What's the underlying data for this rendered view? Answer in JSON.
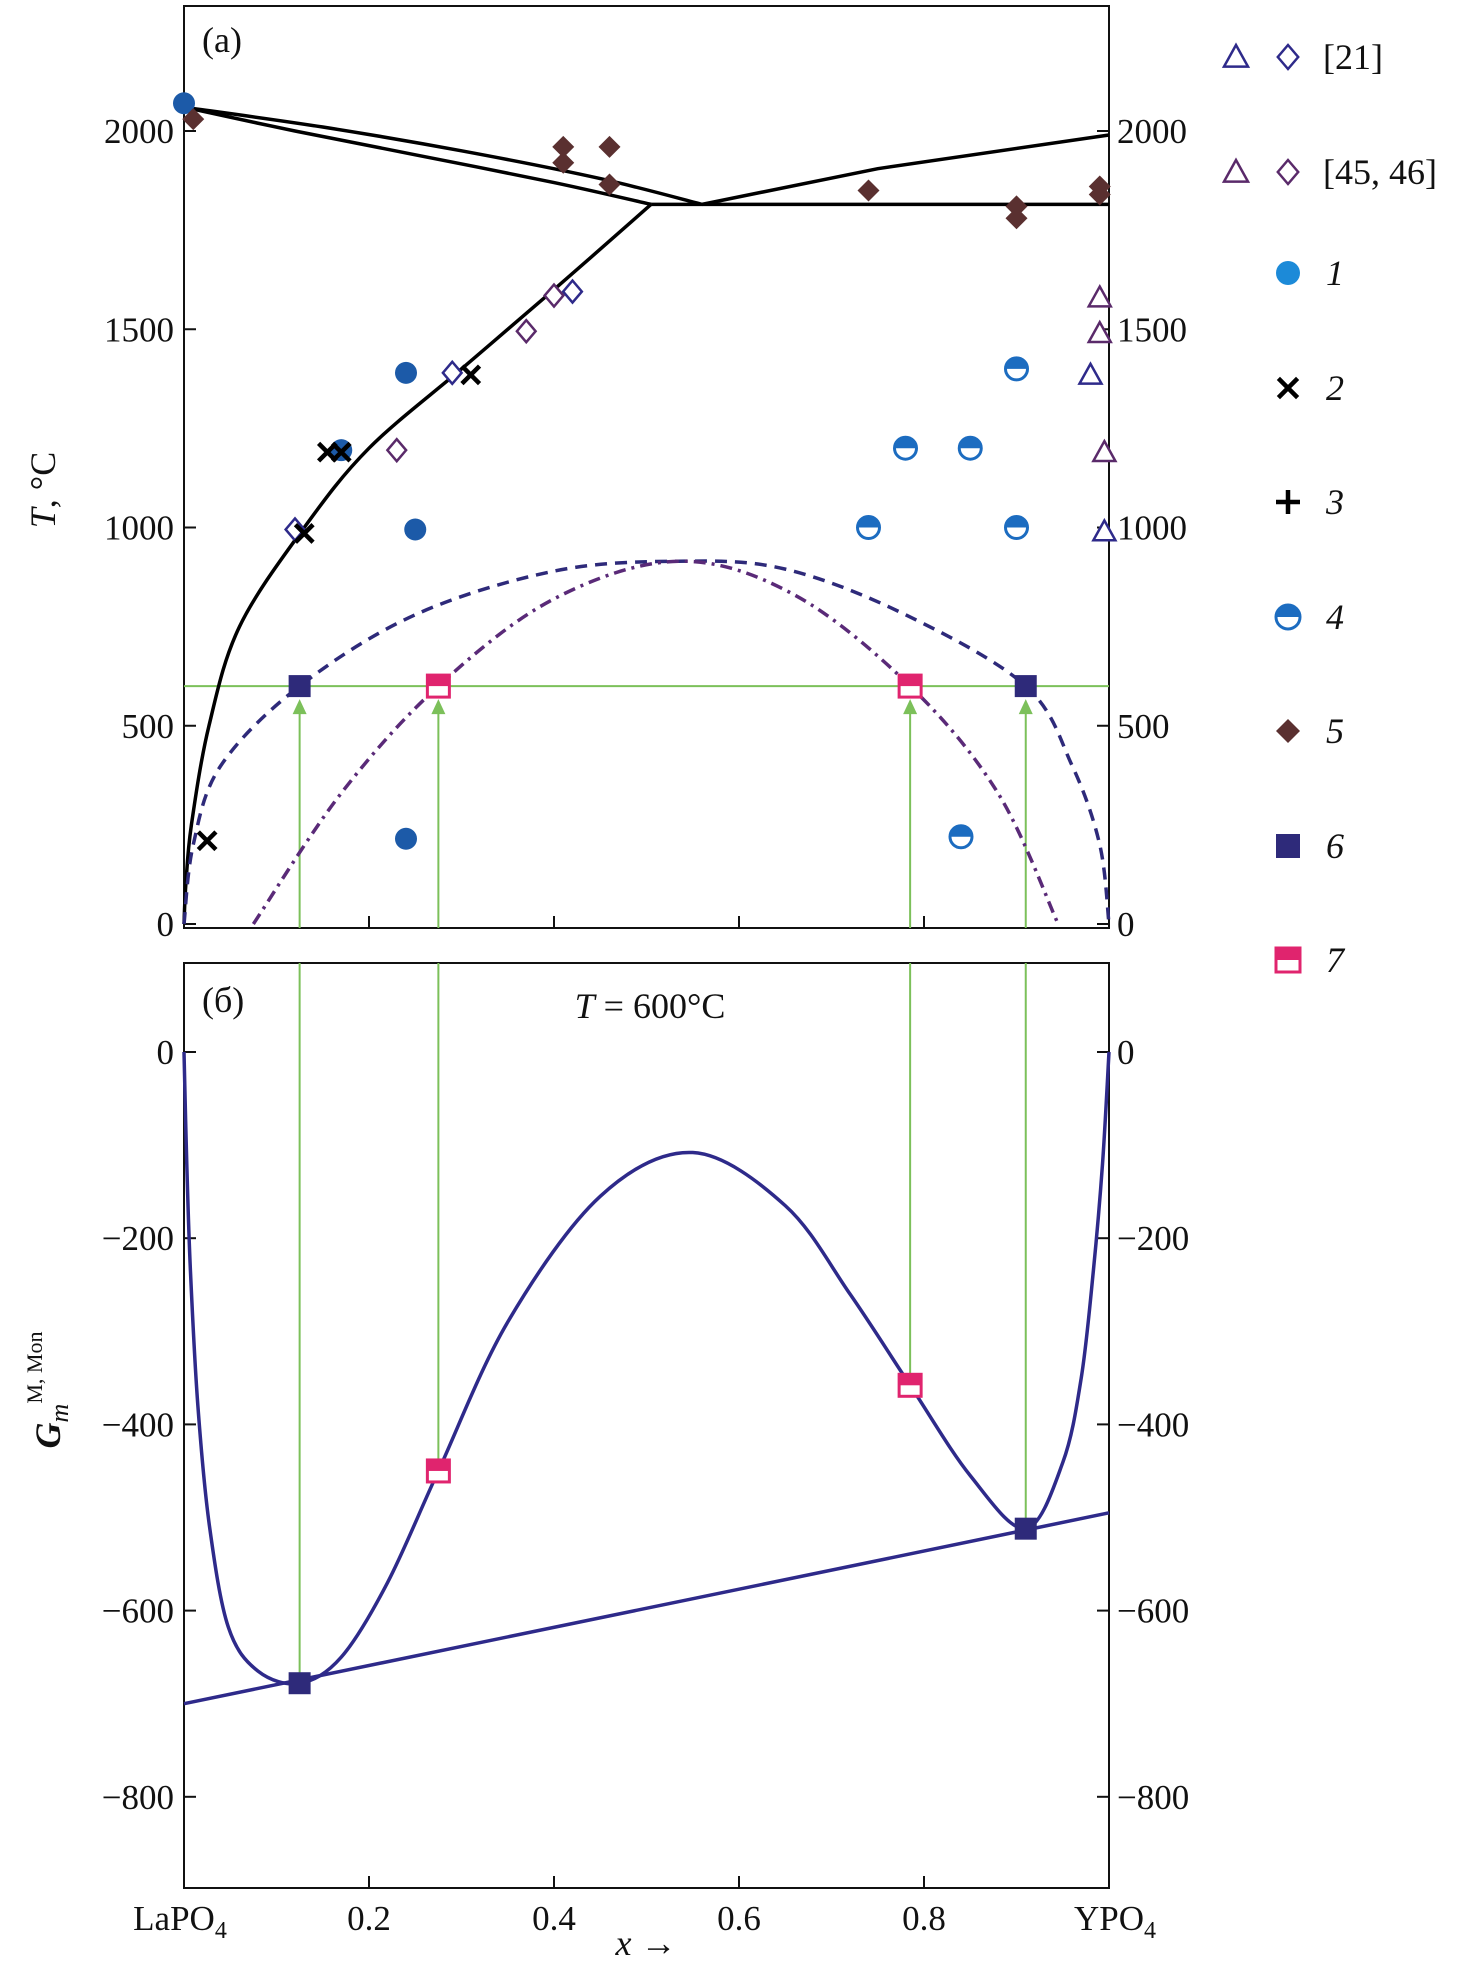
{
  "chart_data": [
    {
      "panel_label": "(a)",
      "type": "scatter",
      "xlabel": "",
      "ylabel_main": "T",
      "ylabel_unit": ", °C",
      "xlim": [
        0,
        1
      ],
      "ylim": [
        0,
        2310
      ],
      "yticks": [
        0,
        500,
        1000,
        1500,
        2000
      ],
      "ytick_labels": [
        "0",
        "500",
        "1000",
        "1500",
        "2000"
      ],
      "xticks": [
        0.2,
        0.4,
        0.6,
        0.8
      ],
      "isotherm_T": 600,
      "lines": [
        {
          "name": "liquidus-left",
          "style": "solid",
          "color": "#000000",
          "points": [
            [
              0,
              2060
            ],
            [
              0.15,
              2010
            ],
            [
              0.3,
              1950
            ],
            [
              0.45,
              1880
            ],
            [
              0.56,
              1815
            ]
          ]
        },
        {
          "name": "solidus-left",
          "style": "solid",
          "color": "#000000",
          "points": [
            [
              0,
              2060
            ],
            [
              0.12,
              2000
            ],
            [
              0.25,
              1940
            ],
            [
              0.4,
              1870
            ],
            [
              0.505,
              1815
            ]
          ]
        },
        {
          "name": "liquidus-right",
          "style": "solid",
          "color": "#000000",
          "points": [
            [
              0.56,
              1815
            ],
            [
              0.75,
              1905
            ],
            [
              1,
              1990
            ]
          ]
        },
        {
          "name": "eutectic-line",
          "style": "solid",
          "color": "#000000",
          "points": [
            [
              0.505,
              1815
            ],
            [
              1,
              1815
            ]
          ]
        },
        {
          "name": "solvus",
          "style": "solid",
          "color": "#000000",
          "points": [
            [
              0,
              0
            ],
            [
              0.002,
              100
            ],
            [
              0.008,
              250
            ],
            [
              0.027,
              500
            ],
            [
              0.06,
              750
            ],
            [
              0.13,
              1000
            ],
            [
              0.2,
              1200
            ],
            [
              0.3,
              1400
            ],
            [
              0.4,
              1600
            ],
            [
              0.505,
              1815
            ]
          ]
        },
        {
          "name": "binodal",
          "style": "dashed",
          "color": "#2e2a7a",
          "points": [
            [
              0,
              0
            ],
            [
              0.01,
              200
            ],
            [
              0.04,
              400
            ],
            [
              0.125,
              600
            ],
            [
              0.25,
              780
            ],
            [
              0.4,
              890
            ],
            [
              0.535,
              915
            ],
            [
              0.65,
              895
            ],
            [
              0.78,
              780
            ],
            [
              0.91,
              600
            ],
            [
              0.96,
              400
            ],
            [
              0.99,
              200
            ],
            [
              1,
              0
            ]
          ]
        },
        {
          "name": "spinodal",
          "style": "dashdot",
          "color": "#5a2a78",
          "points": [
            [
              0.075,
              0
            ],
            [
              0.17,
              330
            ],
            [
              0.275,
              600
            ],
            [
              0.4,
              820
            ],
            [
              0.535,
              915
            ],
            [
              0.66,
              830
            ],
            [
              0.785,
              600
            ],
            [
              0.88,
              330
            ],
            [
              0.945,
              0
            ]
          ]
        }
      ],
      "series": [
        {
          "name": "[21]",
          "marker": "triangle-open",
          "color": "#2e2a8a",
          "points": [
            [
              0.98,
              1385
            ],
            [
              0.995,
              990
            ]
          ]
        },
        {
          "name": "[21]",
          "marker": "diamond-open",
          "color": "#2e2a8a",
          "points": [
            [
              0.12,
              995
            ],
            [
              0.29,
              1390
            ],
            [
              0.42,
              1595
            ]
          ]
        },
        {
          "name": "[45, 46]",
          "marker": "triangle-open",
          "color": "#5a2a6a",
          "points": [
            [
              0.99,
              1580
            ],
            [
              0.99,
              1490
            ],
            [
              0.995,
              1190
            ]
          ]
        },
        {
          "name": "[45, 46]",
          "marker": "diamond-open",
          "color": "#5a2a6a",
          "points": [
            [
              0.23,
              1195
            ],
            [
              0.37,
              1495
            ],
            [
              0.4,
              1585
            ]
          ]
        },
        {
          "name": "1",
          "marker": "circle",
          "color": "#1c5aa8",
          "points": [
            [
              0.24,
              1390
            ],
            [
              0.25,
              995
            ],
            [
              0.24,
              215
            ],
            [
              0.17,
              1195
            ],
            [
              0,
              2070
            ]
          ]
        },
        {
          "name": "2",
          "marker": "x",
          "color": "#000000",
          "points": [
            [
              0.155,
              1190
            ],
            [
              0.17,
              1190
            ],
            [
              0.13,
              985
            ],
            [
              0.31,
              1385
            ],
            [
              0.025,
              210
            ]
          ]
        },
        {
          "name": "3",
          "marker": "plus",
          "color": "#000000",
          "points": []
        },
        {
          "name": "4",
          "marker": "half-circle",
          "color": "#1c6cc0",
          "points": [
            [
              0.78,
              1200
            ],
            [
              0.85,
              1200
            ],
            [
              0.74,
              1000
            ],
            [
              0.9,
              1000
            ],
            [
              0.9,
              1400
            ],
            [
              0.84,
              220
            ]
          ]
        },
        {
          "name": "5",
          "marker": "diamond",
          "color": "#5a3030",
          "points": [
            [
              0.01,
              2030
            ],
            [
              0.41,
              1960
            ],
            [
              0.41,
              1920
            ],
            [
              0.46,
              1960
            ],
            [
              0.46,
              1865
            ],
            [
              0.74,
              1850
            ],
            [
              0.9,
              1810
            ],
            [
              0.9,
              1780
            ],
            [
              0.99,
              1860
            ],
            [
              0.99,
              1840
            ]
          ]
        },
        {
          "name": "6",
          "marker": "square",
          "color": "#2e2a7a",
          "points": [
            [
              0.125,
              600
            ],
            [
              0.91,
              600
            ]
          ]
        },
        {
          "name": "7",
          "marker": "half-square",
          "color": "#e0246e",
          "points": [
            [
              0.275,
              600
            ],
            [
              0.785,
              600
            ]
          ]
        }
      ]
    },
    {
      "panel_label": "(б)",
      "annotation_var": "T",
      "annotation_text": " = 600°C",
      "type": "line",
      "ylabel_main": "G",
      "ylabel_sub": "m",
      "ylabel_sup": "M, Mon",
      "xlabel_var": "x",
      "xlabel_arrow": " →",
      "xlim": [
        0,
        1
      ],
      "ylim": [
        -900,
        95
      ],
      "yticks": [
        0,
        -200,
        -400,
        -600,
        -800
      ],
      "ytick_labels": [
        "0",
        "−200",
        "−400",
        "−600",
        "−800"
      ],
      "xticks": [
        0,
        0.2,
        0.4,
        0.6,
        0.8,
        1
      ],
      "xtick_labels": [
        "LaPO",
        "0.2",
        "0.4",
        "0.6",
        "0.8",
        "YPO"
      ],
      "xtick_subs": [
        "4",
        "",
        "",
        "",
        "",
        "4"
      ],
      "curve": {
        "name": "G-mix",
        "color": "#2e2a8a",
        "points": [
          [
            0,
            0
          ],
          [
            0.003,
            -120
          ],
          [
            0.007,
            -236
          ],
          [
            0.015,
            -380
          ],
          [
            0.0275,
            -509
          ],
          [
            0.048,
            -618
          ],
          [
            0.08,
            -665
          ],
          [
            0.125,
            -678
          ],
          [
            0.17,
            -650
          ],
          [
            0.22,
            -570
          ],
          [
            0.275,
            -450
          ],
          [
            0.35,
            -290
          ],
          [
            0.45,
            -155
          ],
          [
            0.55,
            -108
          ],
          [
            0.65,
            -165
          ],
          [
            0.72,
            -260
          ],
          [
            0.785,
            -358
          ],
          [
            0.85,
            -455
          ],
          [
            0.91,
            -512
          ],
          [
            0.95,
            -441
          ],
          [
            0.97,
            -350
          ],
          [
            0.983,
            -236
          ],
          [
            0.993,
            -120
          ],
          [
            1,
            0
          ]
        ]
      },
      "tangent": {
        "name": "common-tangent",
        "color": "#2e2a8a",
        "points": [
          [
            0,
            -700
          ],
          [
            1,
            -495
          ]
        ]
      },
      "series": [
        {
          "name": "6",
          "marker": "square",
          "color": "#2e2a7a",
          "points": [
            [
              0.125,
              -678
            ],
            [
              0.91,
              -512
            ]
          ]
        },
        {
          "name": "7",
          "marker": "half-square",
          "color": "#e0246e",
          "points": [
            [
              0.275,
              -450
            ],
            [
              0.785,
              -358
            ]
          ]
        }
      ]
    }
  ],
  "legend": [
    {
      "label": "[21]",
      "markers": [
        "triangle-open",
        "diamond-open"
      ],
      "color": "#2e2a8a",
      "italic": false
    },
    {
      "label": "[45, 46]",
      "markers": [
        "triangle-open",
        "diamond-open"
      ],
      "color": "#5a2a6a",
      "italic": false
    },
    {
      "label": "1",
      "markers": [
        "circle"
      ],
      "color": "#1c8ad8",
      "italic": true
    },
    {
      "label": "2",
      "markers": [
        "x"
      ],
      "color": "#000000",
      "italic": true
    },
    {
      "label": "3",
      "markers": [
        "plus"
      ],
      "color": "#000000",
      "italic": true
    },
    {
      "label": "4",
      "markers": [
        "half-circle"
      ],
      "color": "#1c6cc0",
      "italic": true
    },
    {
      "label": "5",
      "markers": [
        "diamond"
      ],
      "color": "#5a3030",
      "italic": true
    },
    {
      "label": "6",
      "markers": [
        "square"
      ],
      "color": "#2e2a7a",
      "italic": true
    },
    {
      "label": "7",
      "markers": [
        "half-square"
      ],
      "color": "#e0246e",
      "italic": true
    }
  ],
  "guide_color": "#7cc05a"
}
